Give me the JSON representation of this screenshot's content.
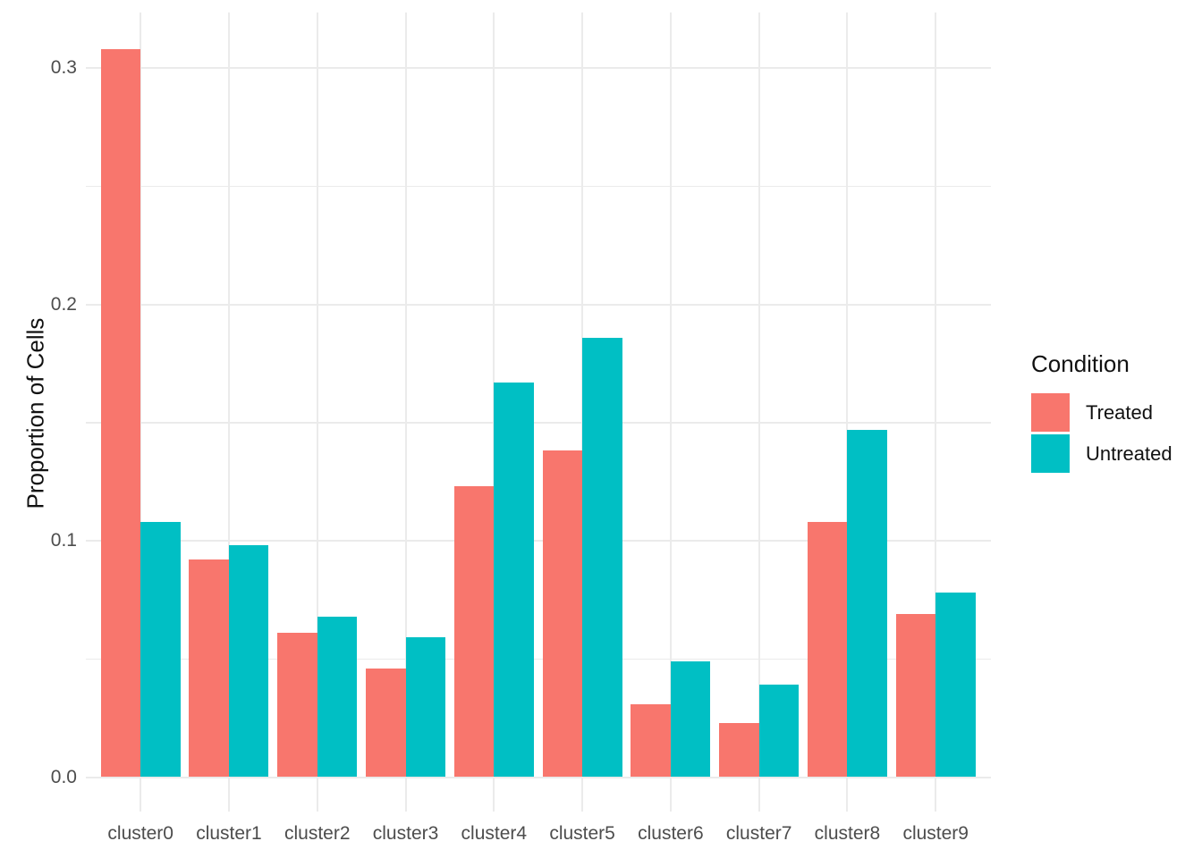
{
  "chart_data": {
    "type": "bar",
    "title": "",
    "xlabel": "",
    "ylabel": "Proportion of Cells",
    "categories": [
      "cluster0",
      "cluster1",
      "cluster2",
      "cluster3",
      "cluster4",
      "cluster5",
      "cluster6",
      "cluster7",
      "cluster8",
      "cluster9"
    ],
    "series": [
      {
        "name": "Treated",
        "color": "#F8766D",
        "values": [
          0.308,
          0.092,
          0.061,
          0.046,
          0.123,
          0.138,
          0.031,
          0.023,
          0.108,
          0.069
        ]
      },
      {
        "name": "Untreated",
        "color": "#00BFC4",
        "values": [
          0.108,
          0.098,
          0.068,
          0.059,
          0.167,
          0.186,
          0.049,
          0.039,
          0.147,
          0.078
        ]
      }
    ],
    "y_major_ticks": [
      0.0,
      0.1,
      0.2,
      0.3
    ],
    "y_tick_labels": [
      "0.0",
      "0.1",
      "0.2",
      "0.3"
    ],
    "y_minor_ticks": [
      0.05,
      0.15,
      0.25
    ],
    "ylim": [
      -0.0154,
      0.3229
    ],
    "grid": "horizontal major+minor, vertical major at group centers",
    "gridline_color": "#EBEBEB",
    "tick_label_color": "#4D4D4D",
    "background_color": "#FFFFFF",
    "legend": {
      "title": "Condition",
      "position": "right",
      "entries": [
        {
          "label": "Treated",
          "color": "#F8766D"
        },
        {
          "label": "Untreated",
          "color": "#00BFC4"
        }
      ]
    }
  }
}
